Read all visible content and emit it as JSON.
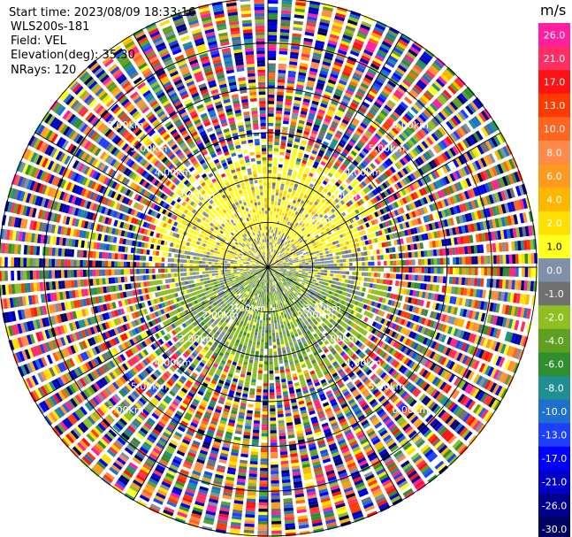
{
  "header": {
    "start_time": "Start time: 2023/08/09 18:33:16",
    "instrument": "WLS200s-181",
    "field": "Field: VEL",
    "elevation": "Elevation(deg): 35.30",
    "nrays": "NRays: 120"
  },
  "chart_data": {
    "type": "heatmap",
    "subtype": "radar-ppi",
    "field": "VEL",
    "units": "m/s",
    "elevation_deg": 35.3,
    "nrays": 120,
    "max_range_km": 6.0,
    "range_rings_km": [
      1.0,
      2.0,
      3.0,
      4.0,
      5.0,
      6.0
    ],
    "range_labels": [
      "1.00km",
      "2.00km",
      "3.00km",
      "4.00km",
      "5.00km",
      "6.00km"
    ],
    "spokes_deg": [
      0,
      30,
      60,
      90,
      120,
      150,
      180,
      210,
      240,
      270,
      300,
      330
    ],
    "grid": true,
    "coherent_region_km": 2.3,
    "pattern": "northern half mostly 0 to +4 m/s (yellow), southern half mostly 0 to -6 m/s (grey/green), noise beyond ~2.3 km",
    "colorbar": {
      "title": "m/s",
      "placement": "right",
      "ticks": [
        "26.0",
        "21.0",
        "17.0",
        "13.0",
        "10.0",
        "8.0",
        "6.0",
        "4.0",
        "2.0",
        "1.0",
        "0.0",
        "-1.0",
        "-2.0",
        "-4.0",
        "-6.0",
        "-8.0",
        "-10.0",
        "-13.0",
        "-17.0",
        "-21.0",
        "-26.0",
        "-30.0"
      ],
      "colors": [
        "#ff1fa0",
        "#ff2e63",
        "#ff1212",
        "#ff3a00",
        "#ff6420",
        "#ff8a4a",
        "#ff9a20",
        "#ffb600",
        "#ffe000",
        "#ffff20",
        "#8090a8",
        "#707070",
        "#8fbf20",
        "#5fa020",
        "#2f8f2f",
        "#1f8f8f",
        "#1f6fcf",
        "#1f3fff",
        "#0000ff",
        "#0000c8",
        "#00008c",
        "#000060"
      ]
    }
  }
}
